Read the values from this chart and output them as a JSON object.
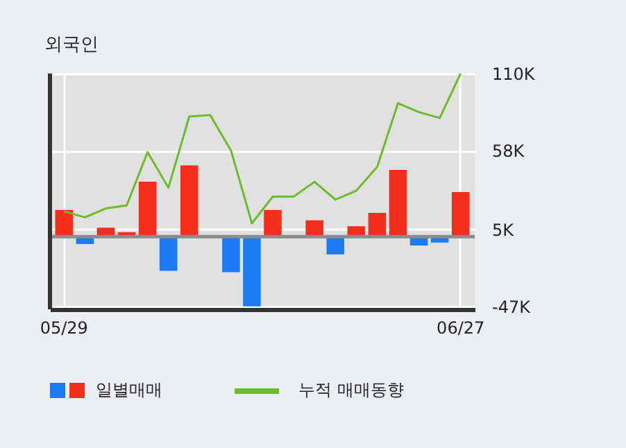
{
  "chart_data": {
    "type": "bar",
    "title": "외국인",
    "categories": [
      "05/29",
      null,
      null,
      null,
      null,
      null,
      null,
      null,
      null,
      null,
      null,
      null,
      null,
      null,
      null,
      null,
      null,
      null,
      null,
      "06/27"
    ],
    "series": [
      {
        "name": "일별매매",
        "colors": [
          "#f52e1c",
          "#1c7cf5",
          "#f52e1c",
          "#f52e1c",
          "#f52e1c",
          "#1c7cf5",
          "#f52e1c",
          "#f52e1c",
          "#1c7cf5",
          "#1c7cf5",
          "#f52e1c",
          "#f52e1c",
          "#f52e1c",
          "#1c7cf5",
          "#f52e1c",
          "#f52e1c",
          "#f52e1c",
          "#1c7cf5",
          "#1c7cf5",
          "#f52e1c"
        ],
        "values": [
          18,
          -5,
          6,
          3,
          37,
          -23,
          48,
          0,
          -24,
          -47,
          18,
          0,
          11,
          -12,
          7,
          16,
          45,
          -6,
          -4,
          30
        ]
      },
      {
        "name": "누적 매매동향",
        "type": "line",
        "color": "#6cbd2a",
        "values": [
          17,
          13,
          19,
          21,
          57,
          33,
          81,
          82,
          58,
          9,
          27,
          27,
          37,
          25,
          31,
          47,
          90,
          84,
          80,
          110
        ]
      }
    ],
    "ylim": [
      -49,
      110
    ],
    "yticks": [
      {
        "value": 110,
        "label": "110K"
      },
      {
        "value": 58,
        "label": "58K"
      },
      {
        "value": 5,
        "label": "5K"
      },
      {
        "value": -47,
        "label": "-47K"
      }
    ],
    "ref_lines": [
      {
        "axis": "y",
        "value": 0,
        "color": "#8c8c8c"
      }
    ],
    "grid": true,
    "legend": "bottom"
  }
}
